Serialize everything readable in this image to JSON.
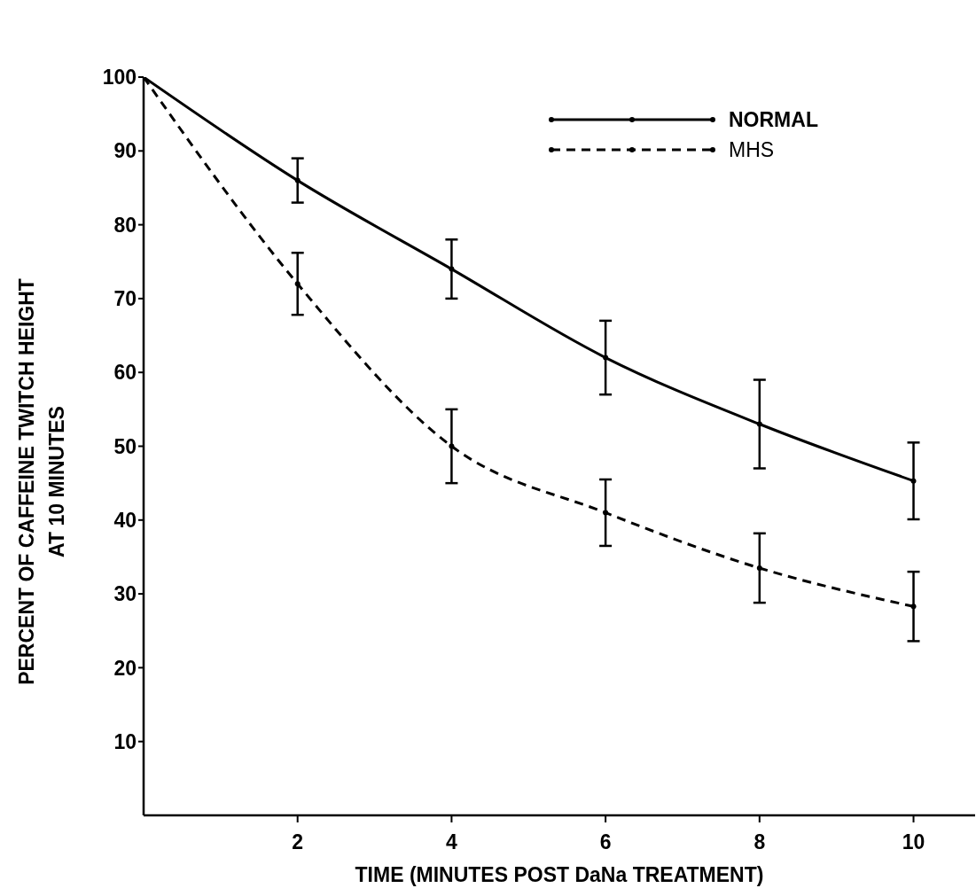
{
  "chart_data": {
    "type": "line",
    "xlabel": "TIME    (MINUTES POST DaNa TREATMENT)",
    "ylabel": "PERCENT OF CAFFEINE TWITCH HEIGHT\nAT 10 MINUTES",
    "x": [
      0,
      2,
      4,
      6,
      8,
      10
    ],
    "series": [
      {
        "name": "NORMAL",
        "color": "#000000",
        "line_style": "solid",
        "values": [
          100,
          86,
          74,
          62,
          53,
          45.3
        ],
        "errors": [
          null,
          3,
          4,
          5,
          6,
          5.2
        ]
      },
      {
        "name": "MHS",
        "color": "#000000",
        "line_style": "dashed",
        "values": [
          100,
          72,
          50,
          41,
          33.5,
          28.3
        ],
        "errors": [
          null,
          4.2,
          5,
          4.5,
          4.7,
          4.7
        ]
      }
    ],
    "xlim": [
      0,
      10.8
    ],
    "xticks": [
      2,
      4,
      6,
      8,
      10
    ],
    "ylim": [
      0,
      100
    ],
    "yticks": [
      10,
      20,
      30,
      40,
      50,
      60,
      70,
      80,
      90,
      100
    ],
    "grid": false,
    "legend": "top right",
    "marker": "circle"
  }
}
